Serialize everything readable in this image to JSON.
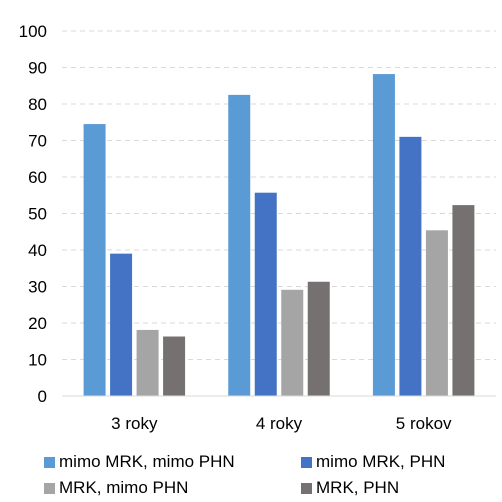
{
  "chart_data": {
    "type": "bar",
    "categories": [
      "3 roky",
      "4 roky",
      "5 rokov"
    ],
    "series": [
      {
        "name": "mimo MRK, mimo PHN",
        "color": "#5B9BD5",
        "values": [
          74.5,
          82.5,
          88.2
        ]
      },
      {
        "name": "mimo MRK, PHN",
        "color": "#4472C4",
        "values": [
          39.0,
          55.7,
          71.0
        ]
      },
      {
        "name": "MRK, mimo PHN",
        "color": "#A5A5A5",
        "values": [
          18.1,
          29.1,
          45.4
        ]
      },
      {
        "name": "MRK, PHN",
        "color": "#767171",
        "values": [
          16.3,
          31.3,
          52.3
        ]
      }
    ],
    "ylim": [
      0,
      100
    ],
    "yticks": [
      0,
      10,
      20,
      30,
      40,
      50,
      60,
      70,
      80,
      90,
      100
    ],
    "grid": true,
    "legend_position": "bottom",
    "title": "",
    "xlabel": "",
    "ylabel": ""
  }
}
